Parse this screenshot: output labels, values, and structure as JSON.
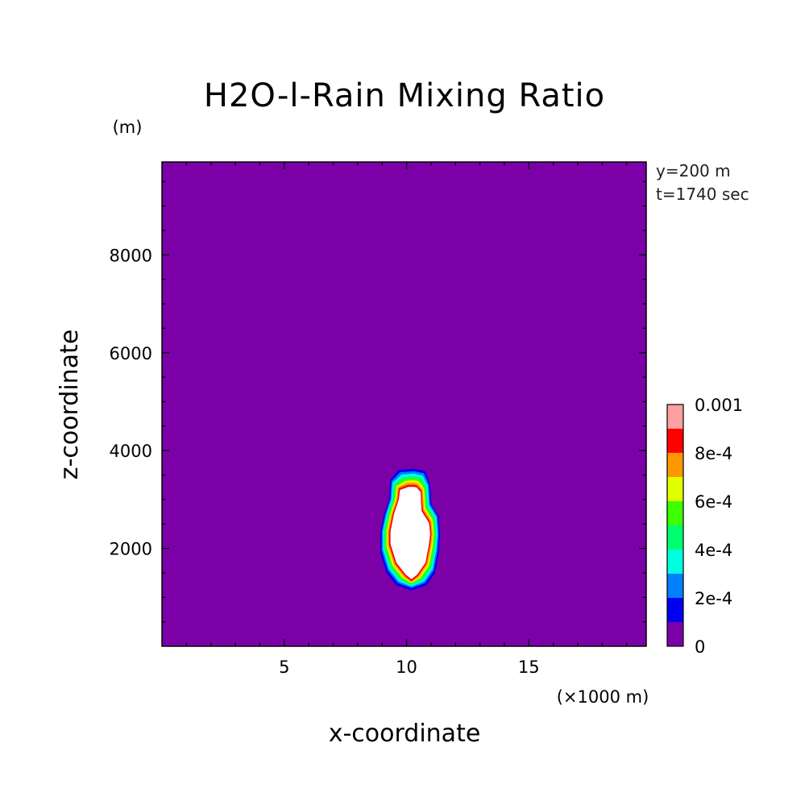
{
  "chart_data": {
    "type": "heatmap",
    "title": "H2O-l-Rain Mixing Ratio",
    "xlabel": "x-coordinate",
    "ylabel": "z-coordinate",
    "x_unit": "(×1000 m)",
    "y_unit": "(m)",
    "annotations": [
      "y=200 m",
      "t=1740 sec"
    ],
    "xlim": [
      0,
      19.8
    ],
    "ylim": [
      0,
      9900
    ],
    "x_ticks": [
      5,
      10,
      15
    ],
    "y_ticks": [
      2000,
      4000,
      6000,
      8000
    ],
    "x_tick_labels": [
      "5",
      "10",
      "15"
    ],
    "y_tick_labels": [
      "2000",
      "4000",
      "6000",
      "8000"
    ],
    "background_value": 0,
    "background_color": "#7b00a8",
    "colorbar": {
      "levels": [
        0,
        0.0001,
        0.0002,
        0.0003,
        0.0004,
        0.0005,
        0.0006,
        0.0007,
        0.0008,
        0.0009,
        0.001
      ],
      "colors": [
        "#7b00a8",
        "#0000f0",
        "#0080ff",
        "#00ffe0",
        "#00ff70",
        "#3cff00",
        "#e0ff00",
        "#ff9800",
        "#ff0000",
        "#ffa0a0"
      ],
      "labels": [
        {
          "value": 0,
          "text": "0"
        },
        {
          "value": 0.0002,
          "text": "2e-4"
        },
        {
          "value": 0.0004,
          "text": "4e-4"
        },
        {
          "value": 0.0006,
          "text": "6e-4"
        },
        {
          "value": 0.0008,
          "text": "8e-4"
        },
        {
          "value": 0.001,
          "text": "0.001"
        }
      ]
    },
    "blob": {
      "center_x": 10.2,
      "contours": [
        {
          "level_color": "#0000f0",
          "points": [
            [
              10.2,
              1150
            ],
            [
              10.8,
              1250
            ],
            [
              11.15,
              1500
            ],
            [
              11.3,
              1900
            ],
            [
              11.35,
              2300
            ],
            [
              11.3,
              2650
            ],
            [
              11.0,
              2900
            ],
            [
              10.95,
              3300
            ],
            [
              10.75,
              3580
            ],
            [
              10.3,
              3620
            ],
            [
              9.7,
              3600
            ],
            [
              9.35,
              3400
            ],
            [
              9.3,
              3000
            ],
            [
              9.1,
              2700
            ],
            [
              8.95,
              2350
            ],
            [
              8.95,
              1900
            ],
            [
              9.2,
              1500
            ],
            [
              9.6,
              1250
            ]
          ]
        },
        {
          "level_color": "#0080ff",
          "points": [
            [
              10.2,
              1200
            ],
            [
              10.75,
              1300
            ],
            [
              11.1,
              1550
            ],
            [
              11.25,
              1950
            ],
            [
              11.3,
              2300
            ],
            [
              11.25,
              2650
            ],
            [
              10.95,
              2900
            ],
            [
              10.9,
              3300
            ],
            [
              10.7,
              3530
            ],
            [
              10.3,
              3570
            ],
            [
              9.75,
              3550
            ],
            [
              9.4,
              3370
            ],
            [
              9.35,
              3000
            ],
            [
              9.15,
              2700
            ],
            [
              9.0,
              2350
            ],
            [
              9.0,
              1950
            ],
            [
              9.25,
              1550
            ],
            [
              9.65,
              1300
            ]
          ]
        },
        {
          "level_color": "#00ffe0",
          "points": [
            [
              10.2,
              1230
            ],
            [
              10.7,
              1330
            ],
            [
              11.05,
              1580
            ],
            [
              11.2,
              1980
            ],
            [
              11.25,
              2300
            ],
            [
              11.2,
              2640
            ],
            [
              10.9,
              2880
            ],
            [
              10.85,
              3280
            ],
            [
              10.65,
              3480
            ],
            [
              10.3,
              3520
            ],
            [
              9.8,
              3500
            ],
            [
              9.45,
              3340
            ],
            [
              9.4,
              3000
            ],
            [
              9.2,
              2700
            ],
            [
              9.05,
              2350
            ],
            [
              9.05,
              1980
            ],
            [
              9.3,
              1580
            ],
            [
              9.7,
              1330
            ]
          ]
        },
        {
          "level_color": "#00ff70",
          "points": [
            [
              10.2,
              1260
            ],
            [
              10.65,
              1360
            ],
            [
              11.0,
              1610
            ],
            [
              11.15,
              2000
            ],
            [
              11.2,
              2300
            ],
            [
              11.15,
              2620
            ],
            [
              10.85,
              2860
            ],
            [
              10.8,
              3260
            ],
            [
              10.6,
              3440
            ],
            [
              10.3,
              3470
            ],
            [
              9.85,
              3450
            ],
            [
              9.5,
              3310
            ],
            [
              9.45,
              3000
            ],
            [
              9.25,
              2700
            ],
            [
              9.1,
              2350
            ],
            [
              9.1,
              2000
            ],
            [
              9.35,
              1610
            ],
            [
              9.75,
              1360
            ]
          ]
        },
        {
          "level_color": "#3cff00",
          "points": [
            [
              10.2,
              1280
            ],
            [
              10.6,
              1380
            ],
            [
              10.95,
              1630
            ],
            [
              11.1,
              2020
            ],
            [
              11.15,
              2300
            ],
            [
              11.1,
              2600
            ],
            [
              10.8,
              2840
            ],
            [
              10.75,
              3240
            ],
            [
              10.55,
              3400
            ],
            [
              10.3,
              3430
            ],
            [
              9.9,
              3410
            ],
            [
              9.55,
              3280
            ],
            [
              9.5,
              3000
            ],
            [
              9.3,
              2700
            ],
            [
              9.15,
              2350
            ],
            [
              9.15,
              2020
            ],
            [
              9.4,
              1630
            ],
            [
              9.8,
              1380
            ]
          ]
        },
        {
          "level_color": "#e0ff00",
          "points": [
            [
              10.2,
              1300
            ],
            [
              10.55,
              1400
            ],
            [
              10.9,
              1650
            ],
            [
              11.05,
              2040
            ],
            [
              11.1,
              2300
            ],
            [
              11.05,
              2580
            ],
            [
              10.75,
              2820
            ],
            [
              10.7,
              3220
            ],
            [
              10.5,
              3360
            ],
            [
              10.3,
              3390
            ],
            [
              9.95,
              3370
            ],
            [
              9.6,
              3260
            ],
            [
              9.55,
              3000
            ],
            [
              9.35,
              2700
            ],
            [
              9.2,
              2350
            ],
            [
              9.2,
              2040
            ],
            [
              9.45,
              1650
            ],
            [
              9.85,
              1400
            ]
          ]
        },
        {
          "level_color": "#ff9800",
          "points": [
            [
              10.2,
              1320
            ],
            [
              10.5,
              1420
            ],
            [
              10.85,
              1670
            ],
            [
              11.0,
              2060
            ],
            [
              11.05,
              2300
            ],
            [
              11.0,
              2560
            ],
            [
              10.7,
              2800
            ],
            [
              10.65,
              3200
            ],
            [
              10.45,
              3320
            ],
            [
              10.3,
              3340
            ],
            [
              10.0,
              3330
            ],
            [
              9.65,
              3240
            ],
            [
              9.6,
              3000
            ],
            [
              9.4,
              2700
            ],
            [
              9.25,
              2350
            ],
            [
              9.25,
              2060
            ],
            [
              9.5,
              1670
            ],
            [
              9.9,
              1420
            ]
          ]
        },
        {
          "level_color": "#ff0000",
          "points": [
            [
              10.2,
              1340
            ],
            [
              10.45,
              1440
            ],
            [
              10.8,
              1690
            ],
            [
              10.95,
              2080
            ],
            [
              11.0,
              2300
            ],
            [
              10.95,
              2540
            ],
            [
              10.65,
              2780
            ],
            [
              10.6,
              3180
            ],
            [
              10.42,
              3280
            ],
            [
              10.3,
              3290
            ],
            [
              10.05,
              3290
            ],
            [
              9.7,
              3220
            ],
            [
              9.65,
              3000
            ],
            [
              9.45,
              2700
            ],
            [
              9.3,
              2350
            ],
            [
              9.3,
              2080
            ],
            [
              9.55,
              1690
            ],
            [
              9.95,
              1440
            ]
          ]
        },
        {
          "level_color": "#ffffff",
          "points": [
            [
              10.2,
              1380
            ],
            [
              10.42,
              1470
            ],
            [
              10.76,
              1710
            ],
            [
              10.9,
              2090
            ],
            [
              10.95,
              2300
            ],
            [
              10.9,
              2520
            ],
            [
              10.6,
              2760
            ],
            [
              10.56,
              3150
            ],
            [
              10.4,
              3240
            ],
            [
              10.3,
              3250
            ],
            [
              10.08,
              3250
            ],
            [
              9.75,
              3190
            ],
            [
              9.7,
              3000
            ],
            [
              9.5,
              2700
            ],
            [
              9.36,
              2350
            ],
            [
              9.36,
              2090
            ],
            [
              9.6,
              1710
            ],
            [
              9.98,
              1470
            ]
          ]
        }
      ]
    }
  }
}
